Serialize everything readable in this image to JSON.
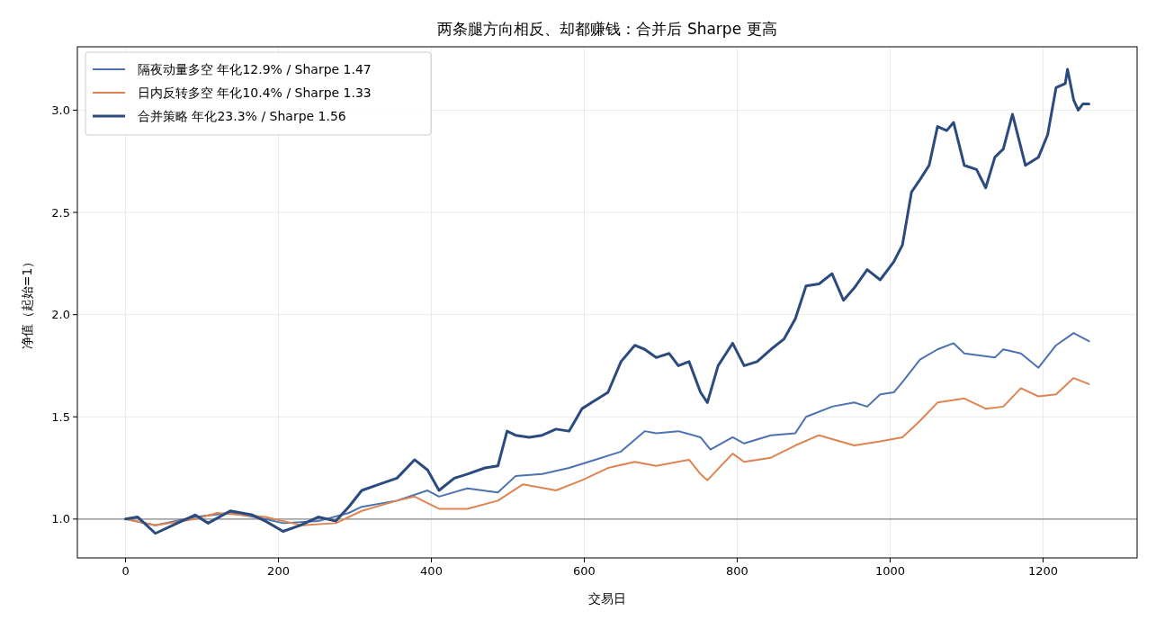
{
  "chart_data": {
    "type": "line",
    "title": "两条腿方向相反、却都赚钱：合并后 Sharpe 更高",
    "xlabel": "交易日",
    "ylabel": "净值（起始=1）",
    "xlim": [
      -63,
      1323
    ],
    "xticks": [
      0,
      200,
      400,
      600,
      800,
      1000,
      1200
    ],
    "ylim": [
      0.81,
      3.31
    ],
    "yticks": [
      {
        "value": 1,
        "label": "1.0"
      },
      {
        "value": 1.5,
        "label": "1.5"
      },
      {
        "value": 2,
        "label": "2.0"
      },
      {
        "value": 2.5,
        "label": "2.5"
      },
      {
        "value": 3,
        "label": "3.0"
      }
    ],
    "grid": true,
    "legend": "top left",
    "line_style": "solid",
    "marker": "none",
    "ref_lines": [
      {
        "axis": "y",
        "value": 1.0,
        "color": "#888888"
      }
    ],
    "series": [
      {
        "name": "隔夜动量多空  年化12.9% / Sharpe 1.47",
        "color": "#4c72b0",
        "x": [
          0,
          39,
          91,
          137,
          183,
          206,
          252,
          292,
          309,
          355,
          395,
          410,
          447,
          487,
          510,
          545,
          580,
          614,
          648,
          679,
          694,
          723,
          752,
          765,
          794,
          809,
          844,
          876,
          890,
          924,
          953,
          970,
          987,
          1005,
          1016,
          1039,
          1062,
          1083,
          1097,
          1137,
          1148,
          1171,
          1194,
          1217,
          1240,
          1260
        ],
        "values": [
          1.0,
          0.97,
          1.01,
          1.03,
          1.0,
          0.98,
          0.99,
          1.03,
          1.06,
          1.09,
          1.14,
          1.11,
          1.15,
          1.13,
          1.21,
          1.22,
          1.25,
          1.29,
          1.33,
          1.43,
          1.42,
          1.43,
          1.4,
          1.34,
          1.4,
          1.37,
          1.41,
          1.42,
          1.5,
          1.55,
          1.57,
          1.55,
          1.61,
          1.62,
          1.67,
          1.78,
          1.83,
          1.86,
          1.81,
          1.79,
          1.83,
          1.81,
          1.74,
          1.85,
          1.91,
          1.87
        ]
      },
      {
        "name": "日内反转多空  年化10.4% / Sharpe 1.33",
        "color": "#dd8452",
        "x": [
          0,
          39,
          91,
          120,
          183,
          230,
          275,
          309,
          355,
          378,
          410,
          447,
          487,
          520,
          563,
          597,
          631,
          666,
          694,
          737,
          752,
          761,
          794,
          809,
          844,
          876,
          907,
          953,
          987,
          1016,
          1039,
          1062,
          1097,
          1125,
          1148,
          1171,
          1194,
          1217,
          1240,
          1260
        ],
        "values": [
          1.0,
          0.97,
          1.0,
          1.03,
          1.01,
          0.97,
          0.98,
          1.04,
          1.09,
          1.11,
          1.05,
          1.05,
          1.09,
          1.17,
          1.14,
          1.19,
          1.25,
          1.28,
          1.26,
          1.29,
          1.22,
          1.19,
          1.32,
          1.28,
          1.3,
          1.36,
          1.41,
          1.36,
          1.38,
          1.4,
          1.48,
          1.57,
          1.59,
          1.54,
          1.55,
          1.64,
          1.6,
          1.61,
          1.69,
          1.66
        ]
      },
      {
        "name": "合并策略  年化23.3% / Sharpe 1.56",
        "color": "#2b4a7e",
        "x": [
          0,
          16,
          39,
          62,
          91,
          108,
          137,
          166,
          183,
          206,
          229,
          252,
          275,
          292,
          309,
          332,
          355,
          378,
          395,
          410,
          430,
          447,
          470,
          487,
          499,
          510,
          528,
          545,
          563,
          580,
          597,
          614,
          631,
          648,
          666,
          679,
          694,
          711,
          723,
          737,
          752,
          761,
          775,
          794,
          809,
          826,
          844,
          861,
          876,
          890,
          907,
          924,
          939,
          953,
          970,
          987,
          1005,
          1016,
          1028,
          1039,
          1051,
          1062,
          1074,
          1083,
          1097,
          1113,
          1125,
          1137,
          1148,
          1160,
          1177,
          1194,
          1206,
          1217,
          1229,
          1232,
          1240,
          1246,
          1252,
          1260
        ],
        "values": [
          1.0,
          1.01,
          0.93,
          0.97,
          1.02,
          0.98,
          1.04,
          1.02,
          0.99,
          0.94,
          0.97,
          1.01,
          0.99,
          1.06,
          1.14,
          1.17,
          1.2,
          1.29,
          1.24,
          1.14,
          1.2,
          1.22,
          1.25,
          1.26,
          1.43,
          1.41,
          1.4,
          1.41,
          1.44,
          1.43,
          1.54,
          1.58,
          1.62,
          1.77,
          1.85,
          1.83,
          1.79,
          1.81,
          1.75,
          1.77,
          1.62,
          1.57,
          1.75,
          1.86,
          1.75,
          1.77,
          1.83,
          1.88,
          1.98,
          2.14,
          2.15,
          2.2,
          2.07,
          2.13,
          2.22,
          2.17,
          2.26,
          2.34,
          2.6,
          2.66,
          2.73,
          2.92,
          2.9,
          2.94,
          2.73,
          2.71,
          2.62,
          2.77,
          2.81,
          2.98,
          2.73,
          2.77,
          2.88,
          3.11,
          3.13,
          3.2,
          3.05,
          3.0,
          3.03,
          3.03
        ]
      }
    ]
  }
}
